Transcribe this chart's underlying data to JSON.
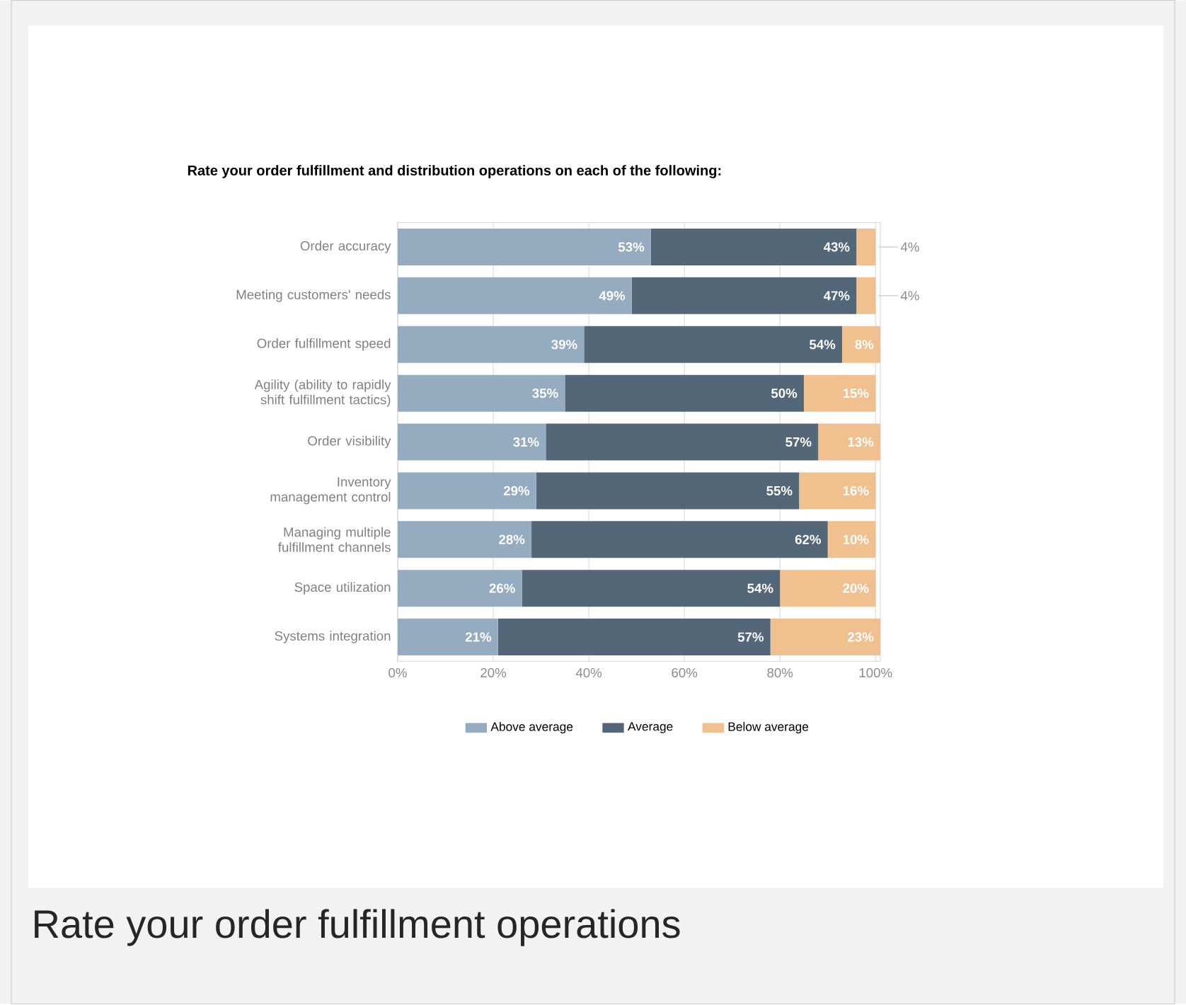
{
  "chart_data": {
    "type": "bar",
    "orientation": "horizontal",
    "stacked": true,
    "title": "Rate your order fulfillment and distribution operations on each of the following:",
    "categories": [
      "Order accuracy",
      "Meeting customers' needs",
      "Order fulfillment speed",
      "Agility (ability to rapidly shift fulfillment tactics)",
      "Order visibility",
      "Inventory management control",
      "Managing multiple fulfillment channels",
      "Space utilization",
      "Systems integration"
    ],
    "series": [
      {
        "name": "Above average",
        "color": "#95acc0",
        "values": [
          53,
          49,
          39,
          35,
          31,
          29,
          28,
          26,
          21
        ],
        "value_labels": [
          "53%",
          "49%",
          "39%",
          "35%",
          "31%",
          "29%",
          "28%",
          "26%",
          "21%"
        ]
      },
      {
        "name": "Average",
        "color": "#546778",
        "values": [
          43,
          47,
          54,
          50,
          57,
          55,
          62,
          54,
          57
        ],
        "value_labels": [
          "43%",
          "47%",
          "54%",
          "50%",
          "57%",
          "55%",
          "62%",
          "54%",
          "57%"
        ]
      },
      {
        "name": "Below average",
        "color": "#f0c08e",
        "values": [
          4,
          4,
          8,
          15,
          13,
          16,
          10,
          20,
          23
        ],
        "value_labels": [
          "4%",
          "4%",
          "8%",
          "15%",
          "13%",
          "16%",
          "10%",
          "20%",
          "23%"
        ]
      }
    ],
    "xlim": [
      0,
      101
    ],
    "xticks": [
      {
        "value": 0,
        "label": "0%"
      },
      {
        "value": 20,
        "label": "20%"
      },
      {
        "value": 40,
        "label": "40%"
      },
      {
        "value": 60,
        "label": "60%"
      },
      {
        "value": 80,
        "label": "80%"
      },
      {
        "value": 100,
        "label": "100%"
      }
    ],
    "grid": "x",
    "legend": "bottom",
    "annotations": [
      "Rate your order fulfillment operations"
    ]
  }
}
